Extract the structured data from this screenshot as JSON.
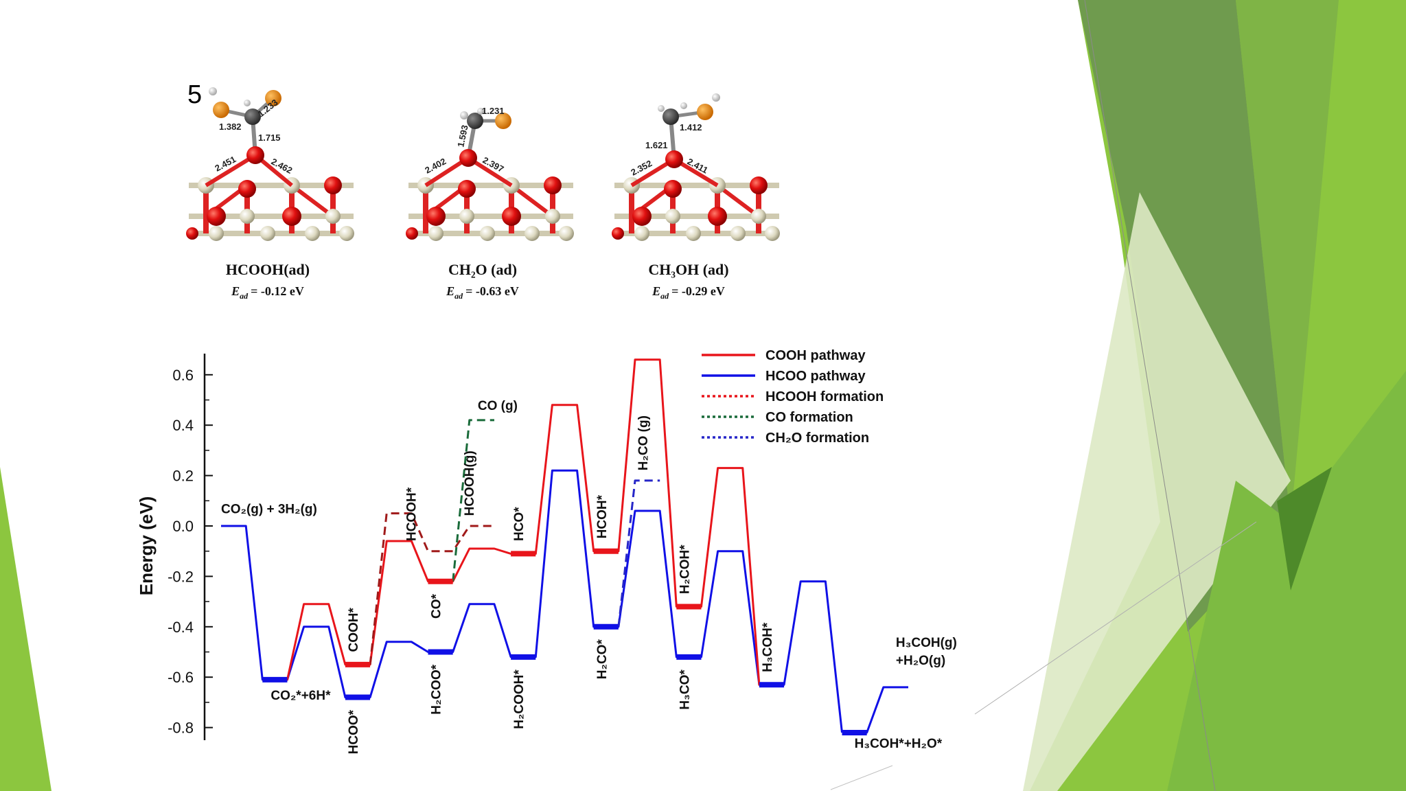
{
  "slide": {
    "number": "5"
  },
  "colors": {
    "cooh": "#e8151b",
    "hcoo": "#1010e6",
    "hcooh_formation": "#a01a1a",
    "co_formation": "#1a6b3a",
    "ch2o_formation": "#2626c8",
    "green_dark": "#6f9b4e",
    "green_light": "#8cc63f"
  },
  "molecules": [
    {
      "name": "HCOOH(ad)",
      "energy_prefix": "E",
      "energy_sub": "ad",
      "energy_value": "= -0.12 eV",
      "bonds": [
        "1.382",
        "1.233",
        "1.715",
        "2.451",
        "2.462"
      ]
    },
    {
      "name": "CH₂O (ad)",
      "energy_prefix": "E",
      "energy_sub": "ad",
      "energy_value": "= -0.63 eV",
      "bonds": [
        "1.231",
        "1.593",
        "2.402",
        "2.397"
      ]
    },
    {
      "name": "CH₃OH (ad)",
      "energy_prefix": "E",
      "energy_sub": "ad",
      "energy_value": "= -0.29 eV",
      "bonds": [
        "1.412",
        "1.621",
        "2.352",
        "2.411"
      ]
    }
  ],
  "chart_data": {
    "type": "line",
    "ylabel": "Energy  (eV)",
    "ylim": [
      -0.85,
      0.7
    ],
    "yticks": [
      "0.6",
      "0.4",
      "0.2",
      "0.0",
      "-0.2",
      "-0.4",
      "-0.6",
      "-0.8"
    ],
    "ytick_values": [
      0.6,
      0.4,
      0.2,
      0.0,
      -0.2,
      -0.4,
      -0.6,
      -0.8
    ],
    "legend_position": "top-right",
    "legend": [
      {
        "label": "COOH pathway",
        "style": "solid",
        "color": "#e8151b"
      },
      {
        "label": "HCOO pathway",
        "style": "solid",
        "color": "#1010e6"
      },
      {
        "label": "HCOOH  formation",
        "style": "dotted",
        "color": "#e8151b"
      },
      {
        "label": "CO formation",
        "style": "dotted",
        "color": "#1a6b3a"
      },
      {
        "label": "CH₂O formation",
        "style": "dotted",
        "color": "#2626c8"
      }
    ],
    "series": [
      {
        "name": "HCOO pathway",
        "color": "#1010e6",
        "style": "solid",
        "x": [
          0,
          0.6,
          1,
          1.6,
          2,
          2.6,
          3,
          3.6,
          4,
          4.6,
          5,
          5.6,
          6,
          6.6,
          7,
          7.6,
          8,
          8.6,
          9,
          9.6,
          10,
          10.6,
          11,
          11.6,
          12,
          12.6,
          13,
          13.6,
          14,
          14.6,
          15
        ],
        "y": [
          0,
          0,
          -0.61,
          -0.61,
          -0.4,
          -0.4,
          -0.68,
          -0.68,
          -0.46,
          -0.46,
          -0.5,
          -0.5,
          -0.31,
          -0.31,
          -0.52,
          -0.52,
          0.22,
          0.22,
          -0.4,
          -0.4,
          0.06,
          0.06,
          -0.52,
          -0.52,
          -0.1,
          -0.1,
          -0.63,
          -0.63,
          -0.22,
          -0.22,
          -0.82
        ]
      },
      {
        "name": "HCOO pathway (end)",
        "color": "#1010e6",
        "style": "solid",
        "x": [
          15,
          15.6,
          16,
          16.6
        ],
        "y": [
          -0.82,
          -0.82,
          -0.64,
          -0.64
        ]
      },
      {
        "name": "COOH pathway",
        "color": "#e8151b",
        "style": "solid",
        "x": [
          1,
          1.6,
          2,
          2.6,
          3,
          3.6,
          4,
          4.6,
          5,
          5.6,
          6,
          6.6,
          7,
          7.6,
          8,
          8.6,
          9,
          9.6,
          10,
          10.6,
          11,
          11.6,
          12,
          12.6,
          13,
          13.6
        ],
        "y": [
          -0.61,
          -0.61,
          -0.31,
          -0.31,
          -0.55,
          -0.55,
          -0.06,
          -0.06,
          -0.22,
          -0.22,
          -0.09,
          -0.09,
          -0.11,
          -0.11,
          0.48,
          0.48,
          -0.1,
          -0.1,
          0.66,
          0.66,
          -0.32,
          -0.32,
          0.23,
          0.23,
          -0.63,
          -0.63
        ]
      },
      {
        "name": "HCOOH  formation",
        "color": "#a01a1a",
        "style": "dashed",
        "x": [
          3.6,
          4,
          4.6,
          5,
          5.6,
          6,
          6.6
        ],
        "y": [
          -0.55,
          0.05,
          0.05,
          -0.1,
          -0.1,
          0.0,
          0.0
        ]
      },
      {
        "name": "CO formation",
        "color": "#1a6b3a",
        "style": "dashed",
        "x": [
          5.6,
          6,
          6.6
        ],
        "y": [
          -0.22,
          0.42,
          0.42
        ]
      },
      {
        "name": "CH₂O formation",
        "color": "#2626c8",
        "style": "dashed",
        "x": [
          9.6,
          10,
          10.6
        ],
        "y": [
          -0.4,
          0.18,
          0.18
        ]
      }
    ],
    "levels": [
      {
        "x": [
          1,
          1.6
        ],
        "y": -0.61,
        "color": "#1010e6"
      },
      {
        "x": [
          3,
          3.6
        ],
        "y": -0.68,
        "color": "#1010e6"
      },
      {
        "x": [
          3,
          3.6
        ],
        "y": -0.55,
        "color": "#e8151b"
      },
      {
        "x": [
          5,
          5.6
        ],
        "y": -0.5,
        "color": "#1010e6"
      },
      {
        "x": [
          5,
          5.6
        ],
        "y": -0.22,
        "color": "#e8151b"
      },
      {
        "x": [
          7,
          7.6
        ],
        "y": -0.52,
        "color": "#1010e6"
      },
      {
        "x": [
          7,
          7.6
        ],
        "y": -0.11,
        "color": "#e8151b"
      },
      {
        "x": [
          9,
          9.6
        ],
        "y": -0.4,
        "color": "#1010e6"
      },
      {
        "x": [
          9,
          9.6
        ],
        "y": -0.1,
        "color": "#e8151b"
      },
      {
        "x": [
          11,
          11.6
        ],
        "y": -0.52,
        "color": "#1010e6"
      },
      {
        "x": [
          11,
          11.6
        ],
        "y": -0.32,
        "color": "#e8151b"
      },
      {
        "x": [
          13,
          13.6
        ],
        "y": -0.63,
        "color": "#1010e6"
      },
      {
        "x": [
          15,
          15.6
        ],
        "y": -0.82,
        "color": "#1010e6"
      }
    ],
    "species_labels": [
      {
        "text": "CO₂(g) + 3H₂(g)",
        "x": 0.0,
        "y": 0.05,
        "rotate": false
      },
      {
        "text": "CO₂*+6H*",
        "x": 1.2,
        "y": -0.69,
        "rotate": false
      },
      {
        "text": "COOH*",
        "x": 3.3,
        "y": -0.5,
        "rotate": true
      },
      {
        "text": "HCOO*",
        "x": 3.3,
        "y": -0.73,
        "rotate": true,
        "below": true
      },
      {
        "text": "HCOOH*",
        "x": 4.7,
        "y": -0.06,
        "rotate": true
      },
      {
        "text": "CO*",
        "x": 5.3,
        "y": -0.27,
        "rotate": true,
        "below": true
      },
      {
        "text": "H₂COO*",
        "x": 5.3,
        "y": -0.55,
        "rotate": true,
        "below": true
      },
      {
        "text": "HCOOH(g)",
        "x": 6.1,
        "y": 0.04,
        "rotate": true
      },
      {
        "text": "CO (g)",
        "x": 6.2,
        "y": 0.46,
        "rotate": false
      },
      {
        "text": "HCO*",
        "x": 7.3,
        "y": -0.06,
        "rotate": true
      },
      {
        "text": "H₂COOH*",
        "x": 7.3,
        "y": -0.57,
        "rotate": true,
        "below": true
      },
      {
        "text": "HCOH*",
        "x": 9.3,
        "y": -0.05,
        "rotate": true
      },
      {
        "text": "H₂CO*",
        "x": 9.3,
        "y": -0.45,
        "rotate": true,
        "below": true
      },
      {
        "text": "H₂CO (g)",
        "x": 10.3,
        "y": 0.22,
        "rotate": true
      },
      {
        "text": "H₂COH*",
        "x": 11.3,
        "y": -0.27,
        "rotate": true
      },
      {
        "text": "H₃CO*",
        "x": 11.3,
        "y": -0.57,
        "rotate": true,
        "below": true
      },
      {
        "text": "H₃COH*",
        "x": 13.3,
        "y": -0.58,
        "rotate": true
      },
      {
        "text": "H₃COH(g)",
        "x": 16.3,
        "y": -0.48,
        "rotate": false
      },
      {
        "text": "+H₂O(g)",
        "x": 16.3,
        "y": -0.55,
        "rotate": false
      },
      {
        "text": "H₃COH*+H₂O*",
        "x": 15.3,
        "y": -0.88,
        "rotate": false
      }
    ]
  }
}
